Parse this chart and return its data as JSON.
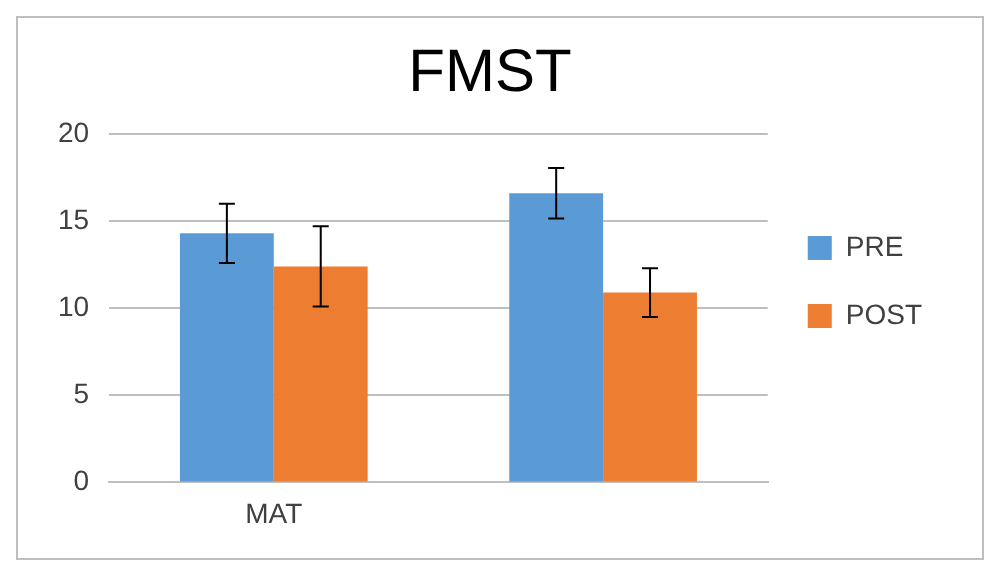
{
  "chart_data": {
    "type": "bar",
    "title": "FMST",
    "categories": [
      "MAT",
      null
    ],
    "series": [
      {
        "name": "PRE",
        "color": "#5b9bd5",
        "values": [
          14.3,
          16.6
        ],
        "errors": [
          1.7,
          1.45
        ]
      },
      {
        "name": "POST",
        "color": "#ed7d31",
        "values": [
          12.4,
          10.9
        ],
        "errors": [
          2.3,
          1.4
        ]
      }
    ],
    "ylim": [
      0,
      20
    ],
    "yticks": [
      0,
      5,
      10,
      15,
      20
    ],
    "grid": "y",
    "legend": "right"
  }
}
